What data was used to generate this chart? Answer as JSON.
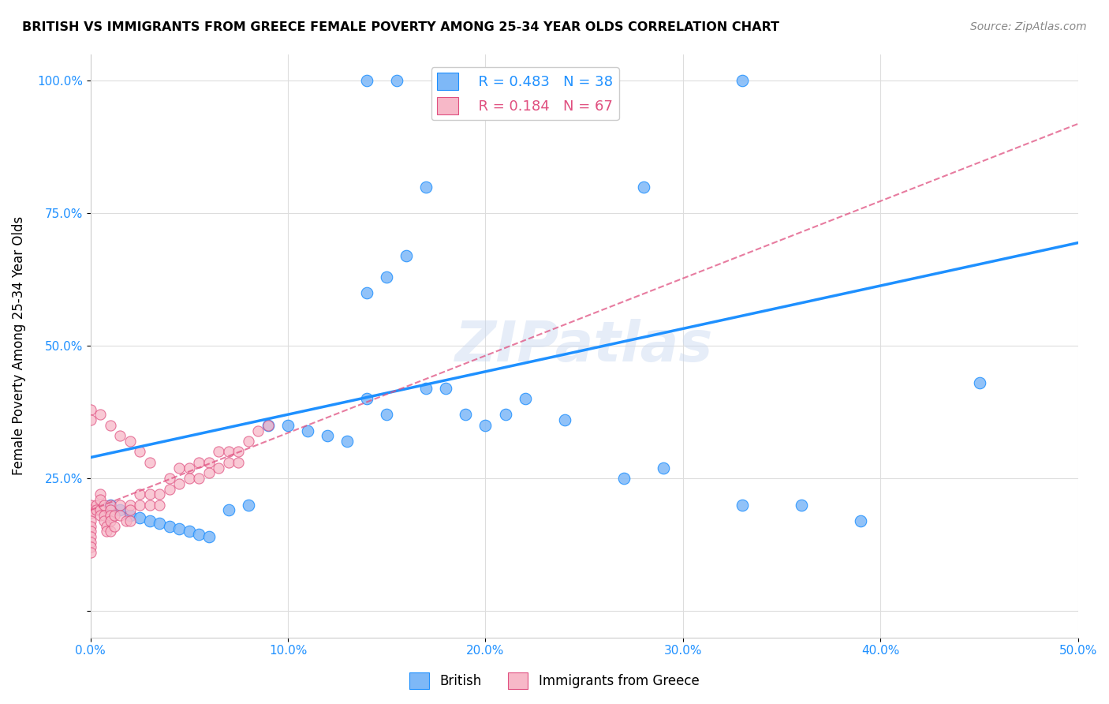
{
  "title": "BRITISH VS IMMIGRANTS FROM GREECE FEMALE POVERTY AMONG 25-34 YEAR OLDS CORRELATION CHART",
  "source": "Source: ZipAtlas.com",
  "ylabel": "Female Poverty Among 25-34 Year Olds",
  "xlim": [
    0.0,
    50.0
  ],
  "ylim": [
    -5.0,
    105.0
  ],
  "xticks": [
    0.0,
    10.0,
    20.0,
    30.0,
    40.0,
    50.0
  ],
  "xticklabels": [
    "0.0%",
    "10.0%",
    "20.0%",
    "30.0%",
    "40.0%",
    "50.0%"
  ],
  "yticks": [
    0.0,
    25.0,
    50.0,
    75.0,
    100.0
  ],
  "yticklabels": [
    "",
    "25.0%",
    "50.0%",
    "75.0%",
    "100.0%"
  ],
  "british_color": "#7eb8f7",
  "greece_color": "#f7b8c8",
  "british_line_color": "#1e90ff",
  "greece_line_color": "#e05080",
  "R_british": 0.483,
  "N_british": 38,
  "R_greece": 0.184,
  "N_greece": 67,
  "watermark": "ZIPatlas",
  "british_x": [
    1.0,
    1.5,
    2.0,
    2.5,
    3.0,
    3.5,
    4.0,
    4.5,
    5.0,
    5.5,
    6.0,
    7.0,
    8.0,
    9.0,
    10.0,
    11.0,
    12.0,
    13.0,
    14.0,
    15.0,
    17.0,
    18.0,
    19.0,
    20.0,
    21.0,
    22.0,
    24.0,
    27.0,
    29.0,
    33.0,
    36.0,
    39.0,
    14.0,
    15.0,
    16.0,
    17.0,
    28.0,
    45.0
  ],
  "british_y": [
    20.0,
    19.0,
    18.0,
    17.5,
    17.0,
    16.5,
    16.0,
    15.5,
    15.0,
    14.5,
    14.0,
    19.0,
    20.0,
    35.0,
    35.0,
    34.0,
    33.0,
    32.0,
    40.0,
    37.0,
    42.0,
    42.0,
    37.0,
    35.0,
    37.0,
    40.0,
    36.0,
    25.0,
    27.0,
    20.0,
    20.0,
    17.0,
    60.0,
    63.0,
    67.0,
    80.0,
    80.0,
    43.0
  ],
  "british_x_top": [
    14.0,
    15.5,
    18.5,
    19.5,
    20.5,
    33.0
  ],
  "british_y_top": [
    100.0,
    100.0,
    100.0,
    100.0,
    100.0,
    100.0
  ],
  "greece_x": [
    0.0,
    0.0,
    0.0,
    0.0,
    0.0,
    0.0,
    0.0,
    0.0,
    0.0,
    0.0,
    0.3,
    0.3,
    0.5,
    0.5,
    0.5,
    0.5,
    0.7,
    0.7,
    0.7,
    0.8,
    0.8,
    1.0,
    1.0,
    1.0,
    1.0,
    1.0,
    1.2,
    1.2,
    1.5,
    1.5,
    1.8,
    2.0,
    2.0,
    2.0,
    2.5,
    2.5,
    3.0,
    3.0,
    3.5,
    3.5,
    4.0,
    4.0,
    4.5,
    4.5,
    5.0,
    5.0,
    5.5,
    5.5,
    6.0,
    6.0,
    6.5,
    6.5,
    7.0,
    7.0,
    7.5,
    7.5,
    8.0,
    8.5,
    9.0,
    0.0,
    0.0,
    0.5,
    1.0,
    1.5,
    2.0,
    2.5,
    3.0
  ],
  "greece_y": [
    20.0,
    19.0,
    18.5,
    17.0,
    16.0,
    15.0,
    14.0,
    13.0,
    12.0,
    11.0,
    20.0,
    19.0,
    22.0,
    21.0,
    19.0,
    18.0,
    20.0,
    18.0,
    17.0,
    16.0,
    15.0,
    20.0,
    19.0,
    18.0,
    17.0,
    15.0,
    18.0,
    16.0,
    20.0,
    18.0,
    17.0,
    20.0,
    19.0,
    17.0,
    22.0,
    20.0,
    22.0,
    20.0,
    22.0,
    20.0,
    25.0,
    23.0,
    27.0,
    24.0,
    27.0,
    25.0,
    28.0,
    25.0,
    28.0,
    26.0,
    30.0,
    27.0,
    30.0,
    28.0,
    30.0,
    28.0,
    32.0,
    34.0,
    35.0,
    38.0,
    36.0,
    37.0,
    35.0,
    33.0,
    32.0,
    30.0,
    28.0
  ]
}
